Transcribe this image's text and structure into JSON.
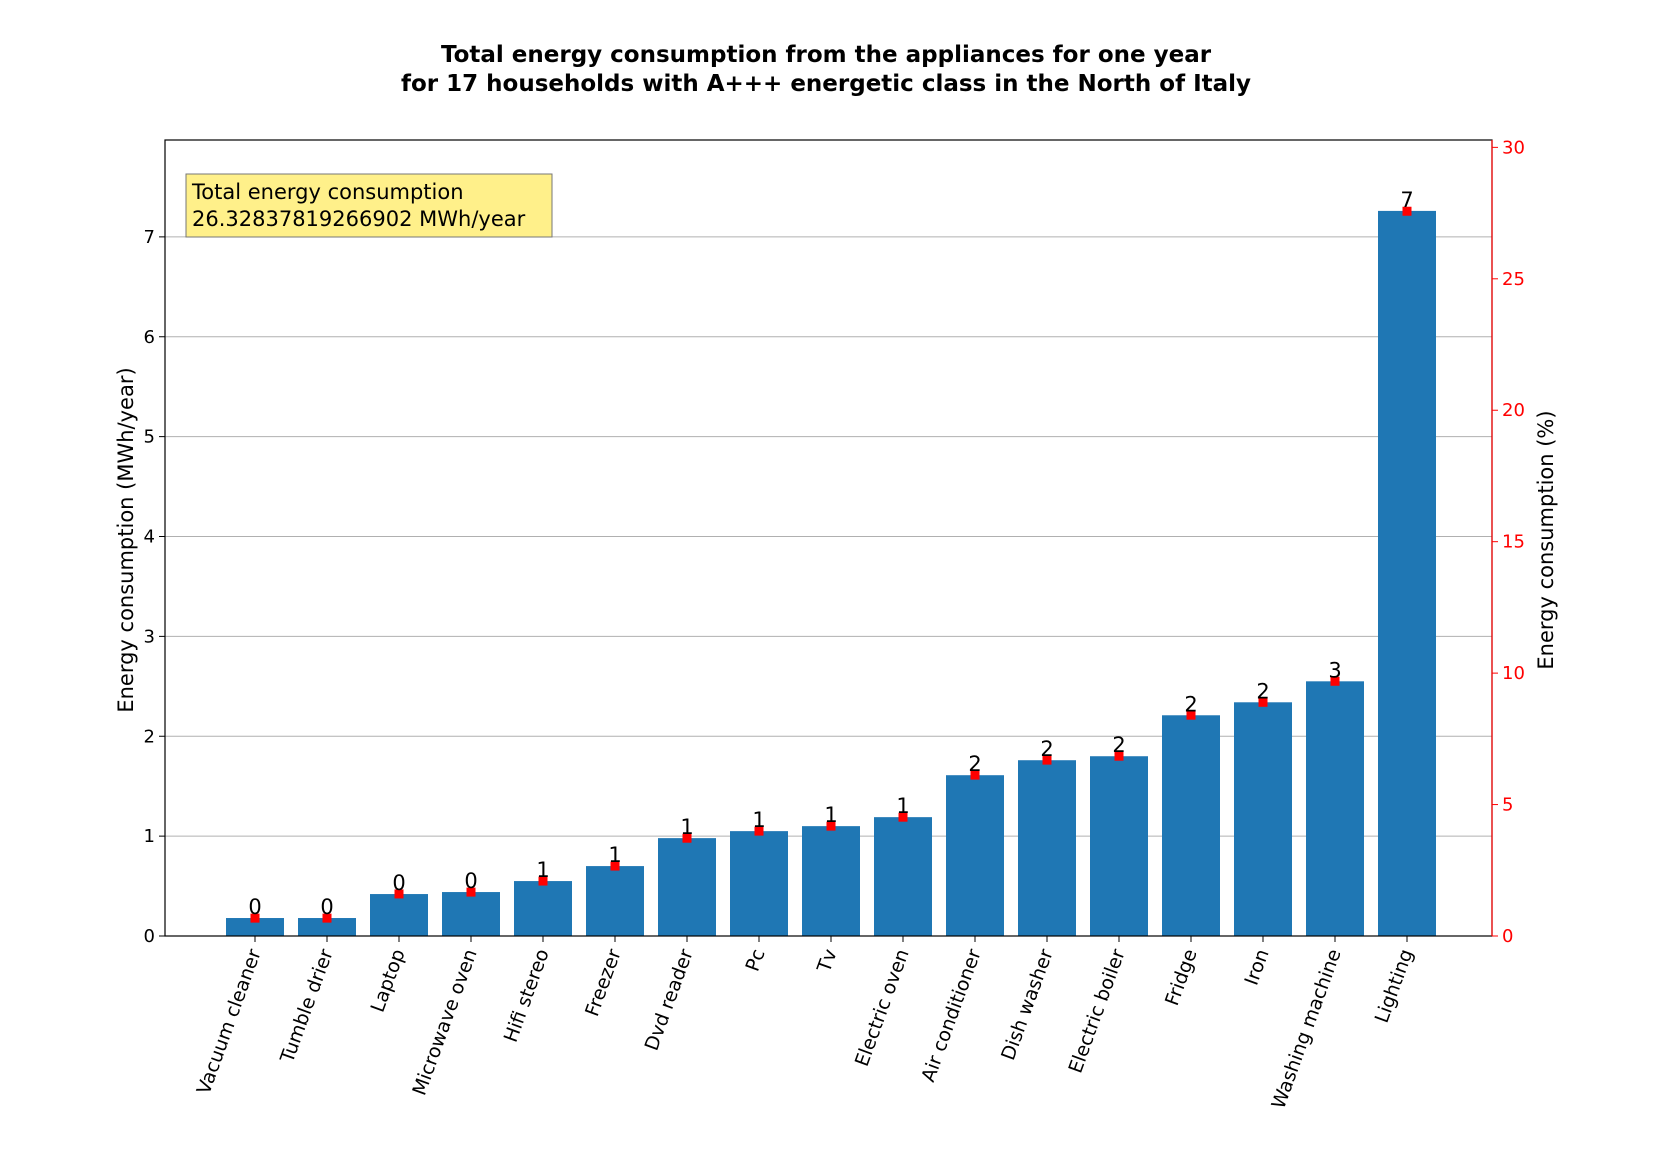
{
  "chart_data": {
    "type": "bar",
    "title_line1": "Total energy consumption from the appliances for one year",
    "title_line2": "for 17 households with A+++ energetic class in the North of Italy",
    "ylabel": "Energy consumption (MWh/year)",
    "y2label": "Energy consumption (%)",
    "ylim": [
      0,
      7.97
    ],
    "y2lim": [
      0,
      30.28
    ],
    "yticks": [
      0,
      1,
      2,
      3,
      4,
      5,
      6,
      7
    ],
    "y2ticks": [
      0,
      5,
      10,
      15,
      20,
      25,
      30
    ],
    "grid": true,
    "categories": [
      "Vacuum cleaner",
      "Tumble drier",
      "Laptop",
      "Microwave oven",
      "Hifi stereo",
      "Freezer",
      "Dvd reader",
      "Pc",
      "Tv",
      "Electric oven",
      "Air conditioner",
      "Dish washer",
      "Electric boiler",
      "Fridge",
      "Iron",
      "Washing machine",
      "Lighting"
    ],
    "values": [
      0.18,
      0.18,
      0.42,
      0.44,
      0.55,
      0.7,
      0.98,
      1.05,
      1.1,
      1.19,
      1.61,
      1.76,
      1.8,
      2.21,
      2.34,
      2.55,
      7.26
    ],
    "bar_labels": [
      "0",
      "0",
      "0",
      "0",
      "1",
      "1",
      "1",
      "1",
      "1",
      "1",
      "2",
      "2",
      "2",
      "2",
      "2",
      "3",
      "7"
    ],
    "percent_values": [
      0.68,
      0.68,
      1.6,
      1.67,
      2.09,
      2.66,
      3.72,
      3.99,
      4.18,
      4.52,
      6.12,
      6.69,
      6.84,
      8.4,
      8.89,
      9.69,
      27.57
    ],
    "annotation_line1": "Total energy consumption",
    "annotation_line2": "26.32837819266902 MWh/year",
    "colors": {
      "bar": "#1f77b4",
      "percent_marker": "#ff0000",
      "secondary_axis": "#ff0000",
      "annotation_bg": "#fff08a",
      "grid": "#b0b0b0"
    }
  }
}
